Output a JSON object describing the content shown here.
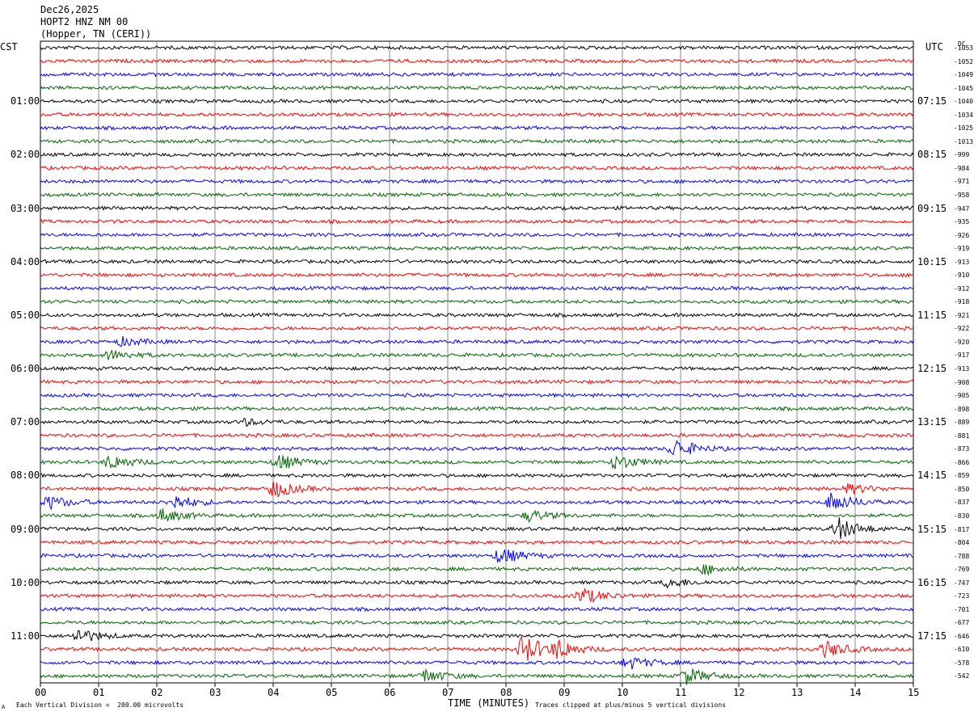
{
  "header": {
    "date": "Dec26,2025",
    "station": "HOPT2 HNZ NM 00",
    "location": "(Hopper, TN (CERI))"
  },
  "left_axis_title": "CST",
  "right_axis_title": "UTC",
  "dc_title": "DC",
  "left_times": [
    "01:00",
    "02:00",
    "03:00",
    "04:00",
    "05:00",
    "06:00",
    "07:00",
    "08:00",
    "09:00",
    "10:00",
    "11:00"
  ],
  "right_times": [
    "07:15",
    "08:15",
    "09:15",
    "10:15",
    "11:15",
    "12:15",
    "13:15",
    "14:15",
    "15:15",
    "16:15",
    "17:15"
  ],
  "dc_offsets": [
    "-1053",
    "-1052",
    "-1049",
    "-1045",
    "-1040",
    "-1034",
    "-1025",
    "-1013",
    "-999",
    "-984",
    "-971",
    "-958",
    "-947",
    "-935",
    "-926",
    "-919",
    "-913",
    "-910",
    "-912",
    "-918",
    "-921",
    "-922",
    "-920",
    "-917",
    "-913",
    "-908",
    "-905",
    "-898",
    "-889",
    "-881",
    "-873",
    "-866",
    "-859",
    "-850",
    "-837",
    "-830",
    "-817",
    "-804",
    "-788",
    "-769",
    "-747",
    "-723",
    "-701",
    "-677",
    "-646",
    "-610",
    "-578",
    "-542"
  ],
  "footer": {
    "scale_note": "Each Vertical Division =  200.00 microvolts",
    "clip_note": "Traces clipped at plus/minus 5 vertical divisions",
    "corner_mark": "A"
  },
  "colors": {
    "trace_cycle": [
      "#000000",
      "#ff0000",
      "#0000ff",
      "#006400"
    ],
    "grid": "#000000"
  },
  "chart_data": {
    "type": "line",
    "title": "",
    "xlabel": "TIME (MINUTES)",
    "x_ticks": [
      "00",
      "01",
      "02",
      "03",
      "04",
      "05",
      "06",
      "07",
      "08",
      "09",
      "10",
      "11",
      "12",
      "13",
      "14",
      "15"
    ],
    "xlim": [
      0,
      15
    ],
    "rows": 48,
    "minutes_per_row": 15,
    "row_color_cycle": [
      "black",
      "red",
      "blue",
      "green"
    ],
    "events": [
      {
        "row": 22,
        "minute": 1.4,
        "amp": 5
      },
      {
        "row": 23,
        "minute": 1.2,
        "amp": 6
      },
      {
        "row": 28,
        "minute": 3.5,
        "amp": 4
      },
      {
        "row": 30,
        "minute": 10.9,
        "amp": 12
      },
      {
        "row": 31,
        "minute": 1.2,
        "amp": 9
      },
      {
        "row": 31,
        "minute": 4.1,
        "amp": 9
      },
      {
        "row": 31,
        "minute": 9.9,
        "amp": 9
      },
      {
        "row": 33,
        "minute": 4.0,
        "amp": 11
      },
      {
        "row": 33,
        "minute": 13.9,
        "amp": 6
      },
      {
        "row": 34,
        "minute": 0.15,
        "amp": 8
      },
      {
        "row": 34,
        "minute": 2.3,
        "amp": 9
      },
      {
        "row": 34,
        "minute": 13.6,
        "amp": 12
      },
      {
        "row": 35,
        "minute": 2.1,
        "amp": 8
      },
      {
        "row": 35,
        "minute": 8.4,
        "amp": 7
      },
      {
        "row": 36,
        "minute": 13.7,
        "amp": 14
      },
      {
        "row": 38,
        "minute": 7.9,
        "amp": 10
      },
      {
        "row": 39,
        "minute": 11.4,
        "amp": 6
      },
      {
        "row": 40,
        "minute": 10.8,
        "amp": 6
      },
      {
        "row": 41,
        "minute": 9.3,
        "amp": 10
      },
      {
        "row": 44,
        "minute": 0.65,
        "amp": 9
      },
      {
        "row": 45,
        "minute": 8.3,
        "amp": 18
      },
      {
        "row": 45,
        "minute": 8.9,
        "amp": 10
      },
      {
        "row": 45,
        "minute": 13.5,
        "amp": 10
      },
      {
        "row": 46,
        "minute": 10.1,
        "amp": 8
      },
      {
        "row": 47,
        "minute": 6.6,
        "amp": 8
      },
      {
        "row": 47,
        "minute": 11.1,
        "amp": 10
      }
    ]
  }
}
